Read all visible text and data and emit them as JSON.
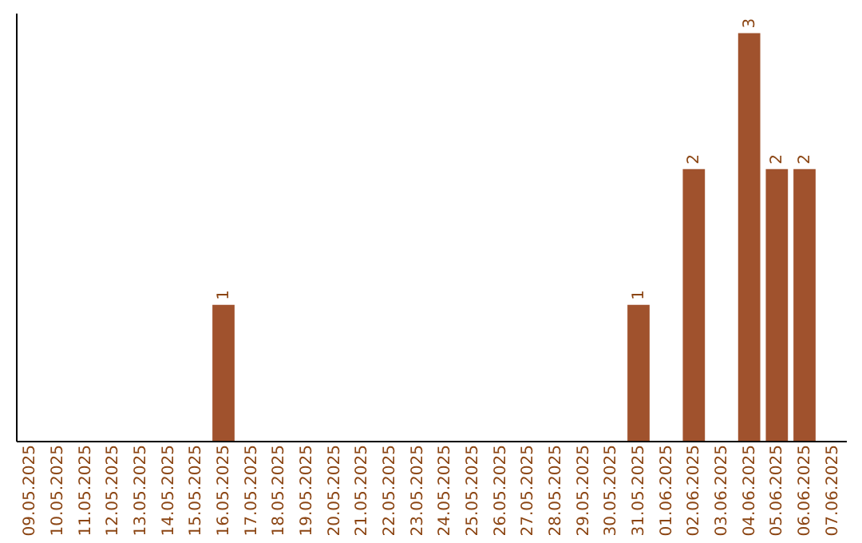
{
  "chart_data": {
    "type": "bar",
    "categories": [
      "09.05.2025",
      "10.05.2025",
      "11.05.2025",
      "12.05.2025",
      "13.05.2025",
      "14.05.2025",
      "15.05.2025",
      "16.05.2025",
      "17.05.2025",
      "18.05.2025",
      "19.05.2025",
      "20.05.2025",
      "21.05.2025",
      "22.05.2025",
      "23.05.2025",
      "24.05.2025",
      "25.05.2025",
      "26.05.2025",
      "27.05.2025",
      "28.05.2025",
      "29.05.2025",
      "30.05.2025",
      "31.05.2025",
      "01.06.2025",
      "02.06.2025",
      "03.06.2025",
      "04.06.2025",
      "05.06.2025",
      "06.06.2025",
      "07.06.2025"
    ],
    "values": [
      null,
      null,
      null,
      null,
      null,
      null,
      null,
      1,
      null,
      null,
      null,
      null,
      null,
      null,
      null,
      null,
      null,
      null,
      null,
      null,
      null,
      null,
      1,
      null,
      2,
      null,
      3,
      2,
      2,
      null
    ],
    "color": "#a0522d",
    "ylim": [
      0,
      3.15
    ],
    "data_labels": true,
    "grid": false,
    "tick_labels": "x"
  }
}
